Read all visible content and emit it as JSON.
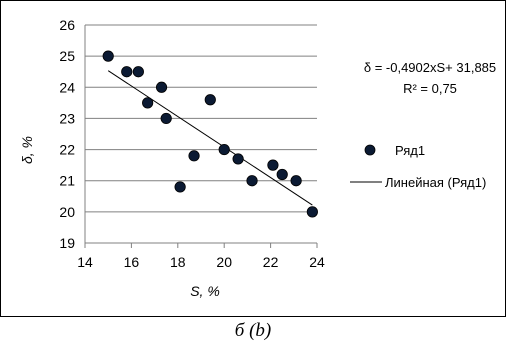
{
  "caption": "б (b)",
  "chart_data": {
    "type": "scatter",
    "xlabel": "S, %",
    "ylabel": "δ, %",
    "xlim": [
      14,
      24
    ],
    "ylim": [
      19,
      26
    ],
    "x_ticks": [
      "14",
      "16",
      "18",
      "20",
      "22",
      "24"
    ],
    "y_ticks": [
      "19",
      "20",
      "21",
      "22",
      "23",
      "24",
      "25",
      "26"
    ],
    "grid": "horizontal",
    "legend_position": "right",
    "series": [
      {
        "name": "Ряд1",
        "marker_color": "#0b1a33",
        "points": [
          {
            "x": 15.0,
            "y": 25.0
          },
          {
            "x": 15.8,
            "y": 24.5
          },
          {
            "x": 16.3,
            "y": 24.5
          },
          {
            "x": 16.7,
            "y": 23.5
          },
          {
            "x": 17.3,
            "y": 24.0
          },
          {
            "x": 17.5,
            "y": 23.0
          },
          {
            "x": 18.1,
            "y": 20.8
          },
          {
            "x": 18.7,
            "y": 21.8
          },
          {
            "x": 19.4,
            "y": 23.6
          },
          {
            "x": 20.0,
            "y": 22.0
          },
          {
            "x": 20.6,
            "y": 21.7
          },
          {
            "x": 21.2,
            "y": 21.0
          },
          {
            "x": 22.1,
            "y": 21.5
          },
          {
            "x": 22.5,
            "y": 21.2
          },
          {
            "x": 23.1,
            "y": 21.0
          },
          {
            "x": 23.8,
            "y": 20.0
          }
        ]
      }
    ],
    "trendline": {
      "name": "Линейная (Ряд1)",
      "slope": -0.4902,
      "intercept": 31.885,
      "x_range": [
        15.0,
        23.8
      ],
      "color": "#000000"
    },
    "equation": "δ = -0,4902xS+ 31,885",
    "r_squared": "R² = 0,75"
  }
}
